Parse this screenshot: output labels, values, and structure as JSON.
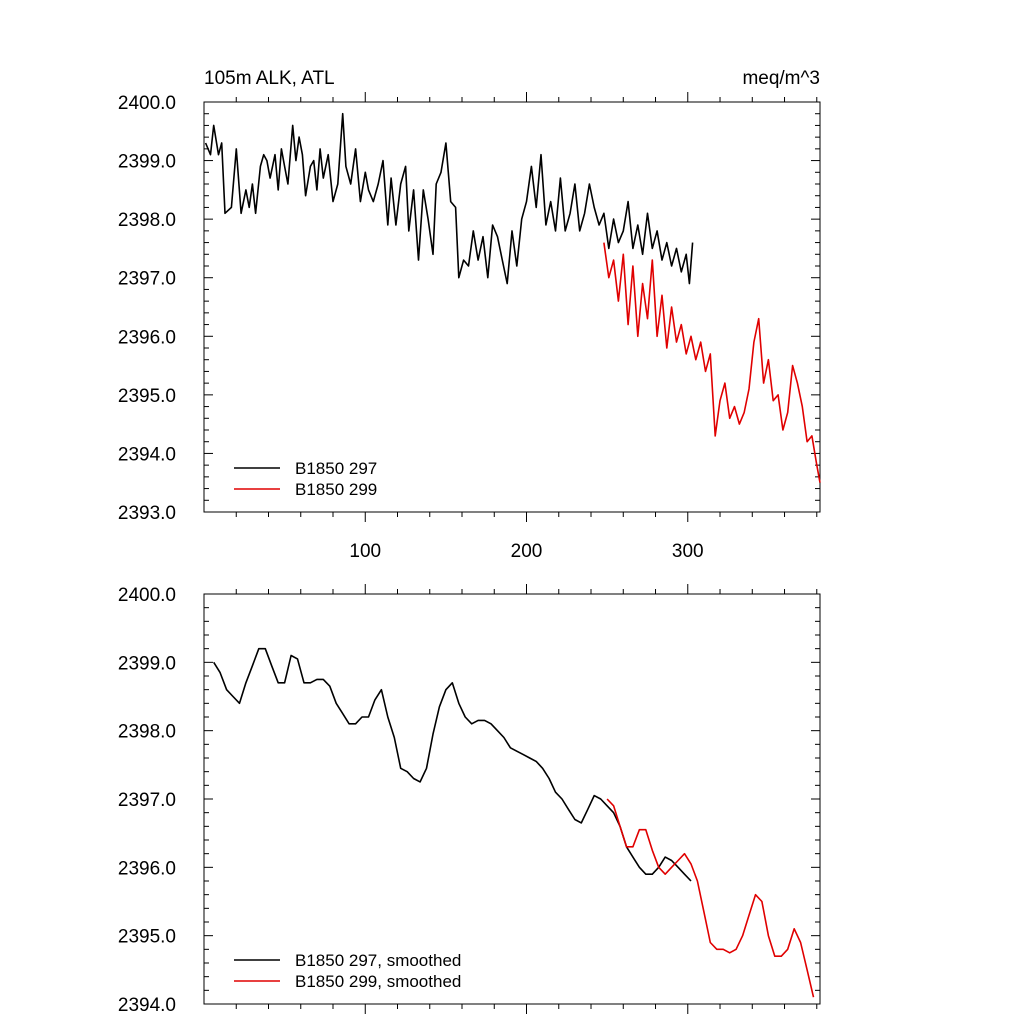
{
  "chart_data": [
    {
      "type": "line",
      "title_left": "105m ALK, ATL",
      "title_right": "meq/m^3",
      "xlim": [
        0,
        382
      ],
      "ylim": [
        2393.0,
        2400.0
      ],
      "x_ticks": [
        100,
        200,
        300
      ],
      "y_ticks": [
        "2393.0",
        "2394.0",
        "2395.0",
        "2396.0",
        "2397.0",
        "2398.0",
        "2399.0",
        "2400.0"
      ],
      "legend": "bottom-left",
      "series": [
        {
          "name": "B1850 297",
          "color": "#000000",
          "x": [
            1,
            4,
            6,
            9,
            11,
            13,
            17,
            20,
            23,
            26,
            28,
            30,
            32,
            35,
            37,
            39,
            41,
            44,
            46,
            48,
            50,
            52,
            55,
            57,
            59,
            61,
            63,
            66,
            68,
            70,
            72,
            74,
            77,
            80,
            83,
            86,
            88,
            91,
            94,
            97,
            100,
            102,
            105,
            108,
            111,
            114,
            116,
            119,
            122,
            125,
            127,
            130,
            133,
            136,
            139,
            142,
            144,
            147,
            150,
            153,
            156,
            158,
            161,
            164,
            167,
            170,
            173,
            176,
            179,
            182,
            185,
            188,
            191,
            194,
            197,
            200,
            203,
            206,
            209,
            212,
            215,
            218,
            221,
            224,
            227,
            230,
            233,
            236,
            239,
            242,
            245,
            248,
            251,
            254,
            257,
            260,
            263,
            266,
            269,
            272,
            275,
            278,
            281,
            284,
            287,
            290,
            293,
            296,
            299,
            301,
            303
          ],
          "values": [
            2399.3,
            2399.1,
            2399.6,
            2399.1,
            2399.3,
            2398.1,
            2398.2,
            2399.2,
            2398.1,
            2398.5,
            2398.2,
            2398.6,
            2398.1,
            2398.9,
            2399.1,
            2399.0,
            2398.7,
            2399.1,
            2398.5,
            2399.2,
            2398.9,
            2398.6,
            2399.6,
            2399.0,
            2399.4,
            2399.1,
            2398.4,
            2398.9,
            2399.0,
            2398.5,
            2399.2,
            2398.7,
            2399.1,
            2398.3,
            2398.6,
            2399.8,
            2398.9,
            2398.6,
            2399.2,
            2398.3,
            2398.8,
            2398.5,
            2398.3,
            2398.6,
            2399.0,
            2397.9,
            2398.7,
            2397.9,
            2398.6,
            2398.9,
            2397.8,
            2398.5,
            2397.3,
            2398.5,
            2398.0,
            2397.4,
            2398.6,
            2398.8,
            2399.3,
            2398.3,
            2398.2,
            2397.0,
            2397.3,
            2397.2,
            2397.8,
            2397.3,
            2397.7,
            2397.0,
            2397.9,
            2397.7,
            2397.3,
            2396.9,
            2397.8,
            2397.2,
            2398.0,
            2398.3,
            2398.9,
            2398.2,
            2399.1,
            2397.9,
            2398.3,
            2397.8,
            2398.7,
            2397.8,
            2398.1,
            2398.6,
            2397.8,
            2398.1,
            2398.6,
            2398.2,
            2397.9,
            2398.1,
            2397.5,
            2398.0,
            2397.6,
            2397.8,
            2398.3,
            2397.5,
            2397.9,
            2397.4,
            2398.1,
            2397.5,
            2397.8,
            2397.3,
            2397.6,
            2397.2,
            2397.5,
            2397.1,
            2397.4,
            2396.9,
            2397.6
          ]
        },
        {
          "name": "B1850 299",
          "color": "#e00000",
          "x": [
            248,
            251,
            254,
            257,
            260,
            263,
            266,
            269,
            272,
            275,
            278,
            281,
            284,
            287,
            290,
            293,
            296,
            299,
            302,
            305,
            308,
            311,
            314,
            317,
            320,
            323,
            326,
            329,
            332,
            335,
            338,
            341,
            344,
            347,
            350,
            353,
            356,
            359,
            362,
            365,
            368,
            371,
            374,
            377,
            380,
            382
          ],
          "values": [
            2397.6,
            2397.0,
            2397.3,
            2396.6,
            2397.4,
            2396.2,
            2397.2,
            2396.0,
            2396.9,
            2396.3,
            2397.3,
            2396.0,
            2396.7,
            2395.8,
            2396.5,
            2395.9,
            2396.2,
            2395.7,
            2396.0,
            2395.6,
            2395.9,
            2395.4,
            2395.7,
            2394.3,
            2394.9,
            2395.2,
            2394.6,
            2394.8,
            2394.5,
            2394.7,
            2395.1,
            2395.9,
            2396.3,
            2395.2,
            2395.6,
            2394.9,
            2395.0,
            2394.4,
            2394.7,
            2395.5,
            2395.2,
            2394.8,
            2394.2,
            2394.3,
            2393.8,
            2393.5
          ]
        }
      ]
    },
    {
      "type": "line",
      "xlim": [
        0,
        382
      ],
      "ylim": [
        2394.0,
        2400.0
      ],
      "x_ticks": [
        100,
        200,
        300
      ],
      "y_ticks": [
        "2394.0",
        "2395.0",
        "2396.0",
        "2397.0",
        "2398.0",
        "2399.0",
        "2400.0"
      ],
      "legend": "bottom-left",
      "series": [
        {
          "name": "B1850 297, smoothed",
          "color": "#000000",
          "x": [
            6,
            10,
            14,
            18,
            22,
            26,
            30,
            34,
            38,
            42,
            46,
            50,
            54,
            58,
            62,
            66,
            70,
            74,
            78,
            82,
            86,
            90,
            94,
            98,
            102,
            106,
            110,
            114,
            118,
            122,
            126,
            130,
            134,
            138,
            142,
            146,
            150,
            154,
            158,
            162,
            166,
            170,
            174,
            178,
            182,
            186,
            190,
            194,
            198,
            202,
            206,
            210,
            214,
            218,
            222,
            226,
            230,
            234,
            238,
            242,
            246,
            250,
            254,
            258,
            262,
            266,
            270,
            274,
            278,
            282,
            286,
            290,
            294,
            298,
            302
          ],
          "values": [
            2399.0,
            2398.85,
            2398.6,
            2398.5,
            2398.4,
            2398.7,
            2398.95,
            2399.2,
            2399.2,
            2398.95,
            2398.7,
            2398.7,
            2399.1,
            2399.05,
            2398.7,
            2398.7,
            2398.75,
            2398.75,
            2398.65,
            2398.4,
            2398.25,
            2398.1,
            2398.1,
            2398.2,
            2398.2,
            2398.45,
            2398.6,
            2398.2,
            2397.9,
            2397.45,
            2397.4,
            2397.3,
            2397.25,
            2397.45,
            2397.95,
            2398.35,
            2398.6,
            2398.7,
            2398.4,
            2398.2,
            2398.1,
            2398.15,
            2398.15,
            2398.1,
            2398.0,
            2397.9,
            2397.75,
            2397.7,
            2397.65,
            2397.6,
            2397.55,
            2397.45,
            2397.3,
            2397.1,
            2397.0,
            2396.85,
            2396.7,
            2396.65,
            2396.85,
            2397.05,
            2397.0,
            2396.9,
            2396.8,
            2396.6,
            2396.3,
            2396.15,
            2396.0,
            2395.9,
            2395.9,
            2396.0,
            2396.15,
            2396.1,
            2396.0,
            2395.9,
            2395.8
          ]
        },
        {
          "name": "B1850 299, smoothed",
          "color": "#e00000",
          "x": [
            250,
            254,
            258,
            262,
            266,
            270,
            274,
            278,
            282,
            286,
            290,
            294,
            298,
            302,
            306,
            310,
            314,
            318,
            322,
            326,
            330,
            334,
            338,
            342,
            346,
            350,
            354,
            358,
            362,
            366,
            370,
            374,
            378
          ],
          "values": [
            2397.0,
            2396.9,
            2396.6,
            2396.3,
            2396.3,
            2396.55,
            2396.55,
            2396.25,
            2396.0,
            2395.9,
            2396.0,
            2396.1,
            2396.2,
            2396.05,
            2395.8,
            2395.35,
            2394.9,
            2394.8,
            2394.8,
            2394.75,
            2394.8,
            2395.0,
            2395.3,
            2395.6,
            2395.5,
            2395.0,
            2394.7,
            2394.7,
            2394.8,
            2395.1,
            2394.9,
            2394.5,
            2394.1
          ]
        }
      ]
    }
  ]
}
